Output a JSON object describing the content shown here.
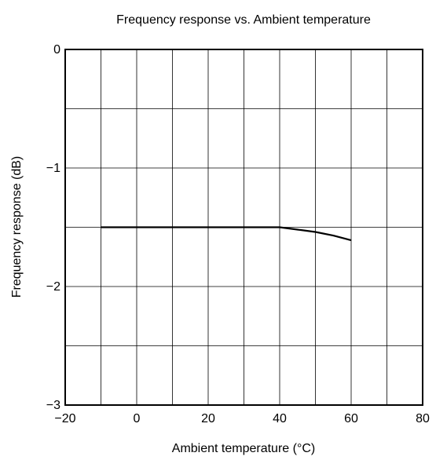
{
  "chart_data": {
    "type": "line",
    "title": "Frequency response vs. Ambient temperature",
    "xlabel": "Ambient temperature (°C)",
    "ylabel": "Frequency response (dB)",
    "xlim": [
      -20,
      80
    ],
    "ylim": [
      -3,
      0
    ],
    "x_ticks": [
      -20,
      0,
      20,
      40,
      60,
      80
    ],
    "x_tick_labels": [
      "−20",
      "0",
      "20",
      "40",
      "60",
      "80"
    ],
    "y_ticks": [
      0,
      -1,
      -2,
      -3
    ],
    "y_tick_labels": [
      "0",
      "−1",
      "−2",
      "−3"
    ],
    "grid": true,
    "x_grid_step": 10,
    "y_grid_step": 0.5,
    "series": [
      {
        "x": [
          -10,
          0,
          10,
          20,
          30,
          40,
          45,
          50,
          55,
          60
        ],
        "y": [
          -1.5,
          -1.5,
          -1.5,
          -1.5,
          -1.5,
          -1.5,
          -1.52,
          -1.54,
          -1.57,
          -1.61
        ],
        "color": "#000000"
      }
    ]
  }
}
